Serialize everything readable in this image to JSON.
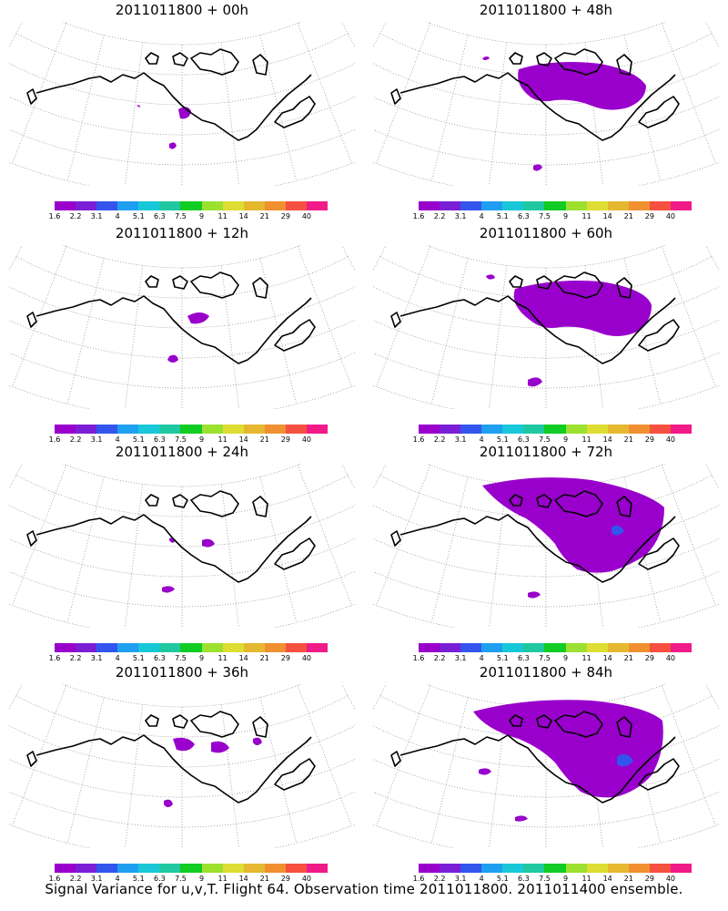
{
  "panels": [
    {
      "title": "2011011800 + 00h"
    },
    {
      "title": "2011011800 + 48h"
    },
    {
      "title": "2011011800 + 12h"
    },
    {
      "title": "2011011800 + 60h"
    },
    {
      "title": "2011011800 + 24h"
    },
    {
      "title": "2011011800 + 72h"
    },
    {
      "title": "2011011800 + 36h"
    },
    {
      "title": "2011011800 + 84h"
    }
  ],
  "colorbar": {
    "colors": [
      "#9900cc",
      "#7a1fd6",
      "#3355ee",
      "#1f9ff0",
      "#18c8d8",
      "#1fc8a0",
      "#11cc22",
      "#9ce030",
      "#dddd33",
      "#e5b830",
      "#f09030",
      "#f55040",
      "#f01a88"
    ],
    "ticks": [
      "1.6",
      "2.2",
      "3.1",
      "4",
      "5.1",
      "6.3",
      "7.5",
      "9",
      "11",
      "14",
      "21",
      "29",
      "40"
    ]
  },
  "footer": "Signal Variance for u,v,T. Flight 64. Observation time 2011011800. 2011011400 ensemble.",
  "map": {
    "projection": "polar-stereographic",
    "graticule": "dotted",
    "coastline_color": "#000000",
    "signal_color": "#9900cc"
  }
}
